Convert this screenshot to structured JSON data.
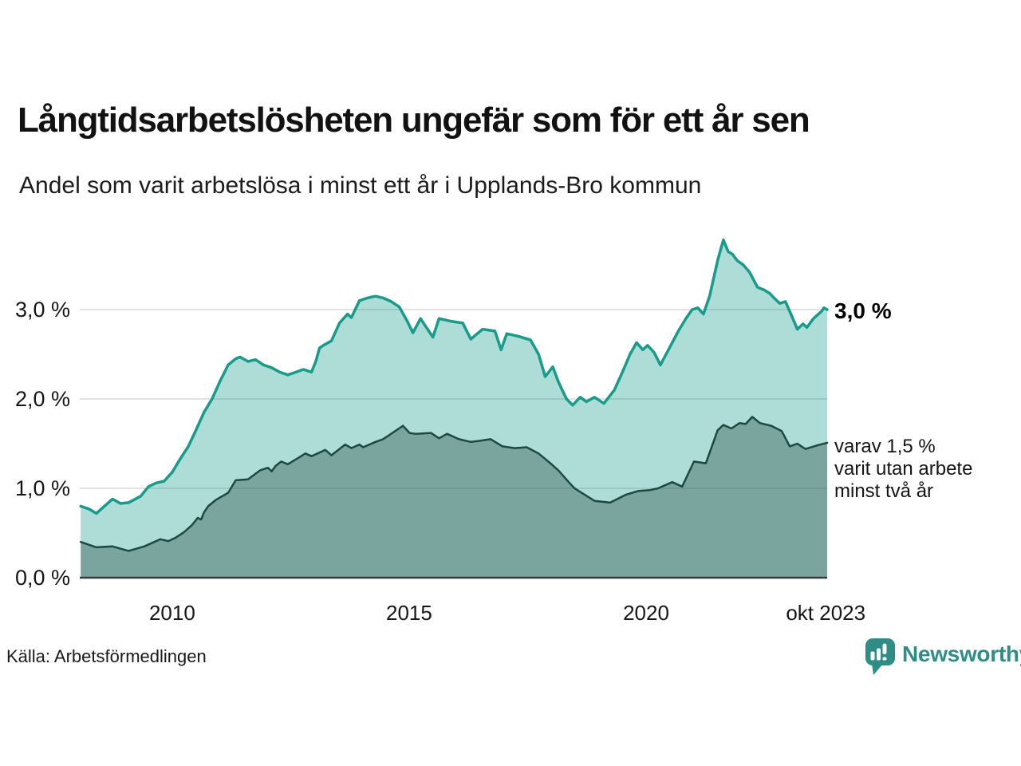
{
  "header": {
    "title": "Långtidsarbetslösheten ungefär som för ett år sen",
    "subtitle": "Andel som varit arbetslösa i minst ett år i Upplands-Bro kommun"
  },
  "chart_data": {
    "type": "area",
    "title": "Långtidsarbetslösheten ungefär som för ett år sen",
    "subtitle": "Andel som varit arbetslösa i minst ett år i Upplands-Bro kommun",
    "unit": "%",
    "grid": "horizontal",
    "colors": {
      "series1_line": "#179b8a",
      "series1_fill": "rgba(23,155,138,0.35)",
      "series2_line": "#1e4843",
      "series2_fill": "rgba(25,60,55,0.35)",
      "gridline": "#d8d8d8",
      "baseline": "#3a3a3a",
      "brand_teal": "#2e8d85"
    },
    "x_axis": {
      "range": [
        2008.05,
        2023.82
      ],
      "ticks": [
        {
          "label": "2010",
          "year": 2010
        },
        {
          "label": "2015",
          "year": 2015
        },
        {
          "label": "2020",
          "year": 2020
        },
        {
          "label": "okt 2023",
          "year": 2023.79
        }
      ]
    },
    "y_axis": {
      "range": [
        0,
        3.9
      ],
      "ticks": [
        {
          "label": "3,0 %",
          "value": 3.0
        },
        {
          "label": "2,0 %",
          "value": 2.0
        },
        {
          "label": "1,0 %",
          "value": 1.0
        },
        {
          "label": "0,0 %",
          "value": 0.0
        }
      ]
    },
    "annotations": {
      "series1_end_label": "3,0 %",
      "series2_end_lines": [
        "varav 1,5 %",
        "varit utan arbete",
        "minst två år"
      ]
    },
    "series": [
      {
        "name": "Andel arbetslösa minst ett år",
        "end_value": 3.0,
        "points": [
          [
            2008.07,
            0.8
          ],
          [
            2008.24,
            0.77
          ],
          [
            2008.4,
            0.72
          ],
          [
            2008.57,
            0.8
          ],
          [
            2008.74,
            0.88
          ],
          [
            2008.91,
            0.83
          ],
          [
            2009.08,
            0.84
          ],
          [
            2009.33,
            0.91
          ],
          [
            2009.5,
            1.02
          ],
          [
            2009.66,
            1.06
          ],
          [
            2009.83,
            1.08
          ],
          [
            2010.0,
            1.18
          ],
          [
            2010.17,
            1.33
          ],
          [
            2010.34,
            1.47
          ],
          [
            2010.5,
            1.65
          ],
          [
            2010.67,
            1.85
          ],
          [
            2010.84,
            2.0
          ],
          [
            2011.01,
            2.2
          ],
          [
            2011.18,
            2.38
          ],
          [
            2011.34,
            2.45
          ],
          [
            2011.43,
            2.47
          ],
          [
            2011.6,
            2.42
          ],
          [
            2011.76,
            2.44
          ],
          [
            2011.93,
            2.38
          ],
          [
            2012.1,
            2.35
          ],
          [
            2012.27,
            2.3
          ],
          [
            2012.44,
            2.27
          ],
          [
            2012.61,
            2.3
          ],
          [
            2012.77,
            2.33
          ],
          [
            2012.94,
            2.3
          ],
          [
            2013.03,
            2.42
          ],
          [
            2013.11,
            2.57
          ],
          [
            2013.19,
            2.6
          ],
          [
            2013.36,
            2.65
          ],
          [
            2013.53,
            2.85
          ],
          [
            2013.7,
            2.95
          ],
          [
            2013.78,
            2.91
          ],
          [
            2013.95,
            3.1
          ],
          [
            2014.12,
            3.13
          ],
          [
            2014.29,
            3.15
          ],
          [
            2014.45,
            3.13
          ],
          [
            2014.62,
            3.09
          ],
          [
            2014.79,
            3.03
          ],
          [
            2014.96,
            2.87
          ],
          [
            2015.08,
            2.74
          ],
          [
            2015.24,
            2.9
          ],
          [
            2015.5,
            2.69
          ],
          [
            2015.63,
            2.9
          ],
          [
            2015.88,
            2.87
          ],
          [
            2016.13,
            2.85
          ],
          [
            2016.3,
            2.67
          ],
          [
            2016.55,
            2.78
          ],
          [
            2016.81,
            2.76
          ],
          [
            2016.94,
            2.55
          ],
          [
            2017.06,
            2.73
          ],
          [
            2017.31,
            2.7
          ],
          [
            2017.56,
            2.66
          ],
          [
            2017.73,
            2.5
          ],
          [
            2017.87,
            2.25
          ],
          [
            2018.03,
            2.36
          ],
          [
            2018.15,
            2.19
          ],
          [
            2018.32,
            2.0
          ],
          [
            2018.45,
            1.93
          ],
          [
            2018.61,
            2.02
          ],
          [
            2018.74,
            1.97
          ],
          [
            2018.91,
            2.02
          ],
          [
            2019.11,
            1.95
          ],
          [
            2019.33,
            2.1
          ],
          [
            2019.5,
            2.3
          ],
          [
            2019.66,
            2.5
          ],
          [
            2019.8,
            2.63
          ],
          [
            2019.93,
            2.55
          ],
          [
            2020.03,
            2.6
          ],
          [
            2020.17,
            2.52
          ],
          [
            2020.3,
            2.38
          ],
          [
            2020.47,
            2.55
          ],
          [
            2020.67,
            2.75
          ],
          [
            2020.84,
            2.9
          ],
          [
            2020.97,
            3.0
          ],
          [
            2021.09,
            3.02
          ],
          [
            2021.21,
            2.95
          ],
          [
            2021.34,
            3.15
          ],
          [
            2021.51,
            3.55
          ],
          [
            2021.63,
            3.78
          ],
          [
            2021.73,
            3.65
          ],
          [
            2021.82,
            3.62
          ],
          [
            2021.92,
            3.55
          ],
          [
            2022.05,
            3.5
          ],
          [
            2022.18,
            3.42
          ],
          [
            2022.35,
            3.25
          ],
          [
            2022.49,
            3.22
          ],
          [
            2022.61,
            3.18
          ],
          [
            2022.72,
            3.12
          ],
          [
            2022.82,
            3.07
          ],
          [
            2022.94,
            3.09
          ],
          [
            2023.08,
            2.92
          ],
          [
            2023.19,
            2.78
          ],
          [
            2023.31,
            2.84
          ],
          [
            2023.39,
            2.8
          ],
          [
            2023.53,
            2.9
          ],
          [
            2023.7,
            2.98
          ],
          [
            2023.75,
            3.02
          ],
          [
            2023.82,
            3.0
          ]
        ]
      },
      {
        "name": "varav utan arbete minst två år",
        "end_value": 1.5,
        "points": [
          [
            2008.07,
            0.4
          ],
          [
            2008.4,
            0.34
          ],
          [
            2008.74,
            0.35
          ],
          [
            2009.08,
            0.3
          ],
          [
            2009.41,
            0.35
          ],
          [
            2009.75,
            0.43
          ],
          [
            2009.92,
            0.41
          ],
          [
            2010.08,
            0.45
          ],
          [
            2010.25,
            0.51
          ],
          [
            2010.42,
            0.59
          ],
          [
            2010.54,
            0.67
          ],
          [
            2010.61,
            0.65
          ],
          [
            2010.67,
            0.73
          ],
          [
            2010.76,
            0.8
          ],
          [
            2010.92,
            0.87
          ],
          [
            2011.18,
            0.95
          ],
          [
            2011.34,
            1.09
          ],
          [
            2011.6,
            1.1
          ],
          [
            2011.85,
            1.2
          ],
          [
            2012.02,
            1.23
          ],
          [
            2012.1,
            1.19
          ],
          [
            2012.18,
            1.25
          ],
          [
            2012.3,
            1.3
          ],
          [
            2012.44,
            1.27
          ],
          [
            2012.66,
            1.34
          ],
          [
            2012.81,
            1.39
          ],
          [
            2012.94,
            1.36
          ],
          [
            2013.11,
            1.4
          ],
          [
            2013.23,
            1.43
          ],
          [
            2013.36,
            1.37
          ],
          [
            2013.65,
            1.49
          ],
          [
            2013.78,
            1.45
          ],
          [
            2013.95,
            1.49
          ],
          [
            2014.03,
            1.46
          ],
          [
            2014.29,
            1.52
          ],
          [
            2014.45,
            1.55
          ],
          [
            2014.87,
            1.7
          ],
          [
            2015.01,
            1.62
          ],
          [
            2015.13,
            1.61
          ],
          [
            2015.46,
            1.62
          ],
          [
            2015.63,
            1.56
          ],
          [
            2015.8,
            1.61
          ],
          [
            2016.05,
            1.55
          ],
          [
            2016.3,
            1.52
          ],
          [
            2016.47,
            1.53
          ],
          [
            2016.72,
            1.55
          ],
          [
            2016.97,
            1.47
          ],
          [
            2017.23,
            1.45
          ],
          [
            2017.48,
            1.46
          ],
          [
            2017.73,
            1.39
          ],
          [
            2017.98,
            1.28
          ],
          [
            2018.15,
            1.2
          ],
          [
            2018.4,
            1.05
          ],
          [
            2018.49,
            1.0
          ],
          [
            2018.91,
            0.86
          ],
          [
            2019.24,
            0.84
          ],
          [
            2019.58,
            0.93
          ],
          [
            2019.83,
            0.97
          ],
          [
            2020.08,
            0.98
          ],
          [
            2020.25,
            1.0
          ],
          [
            2020.55,
            1.07
          ],
          [
            2020.76,
            1.02
          ],
          [
            2021.01,
            1.3
          ],
          [
            2021.26,
            1.28
          ],
          [
            2021.51,
            1.65
          ],
          [
            2021.63,
            1.71
          ],
          [
            2021.8,
            1.67
          ],
          [
            2021.97,
            1.73
          ],
          [
            2022.1,
            1.72
          ],
          [
            2022.24,
            1.8
          ],
          [
            2022.4,
            1.73
          ],
          [
            2022.64,
            1.7
          ],
          [
            2022.86,
            1.64
          ],
          [
            2023.03,
            1.47
          ],
          [
            2023.19,
            1.5
          ],
          [
            2023.36,
            1.44
          ],
          [
            2023.61,
            1.48
          ],
          [
            2023.82,
            1.51
          ]
        ]
      }
    ]
  },
  "footer": {
    "source": "Källa: Arbetsförmedlingen",
    "brand": "Newsworthy"
  }
}
